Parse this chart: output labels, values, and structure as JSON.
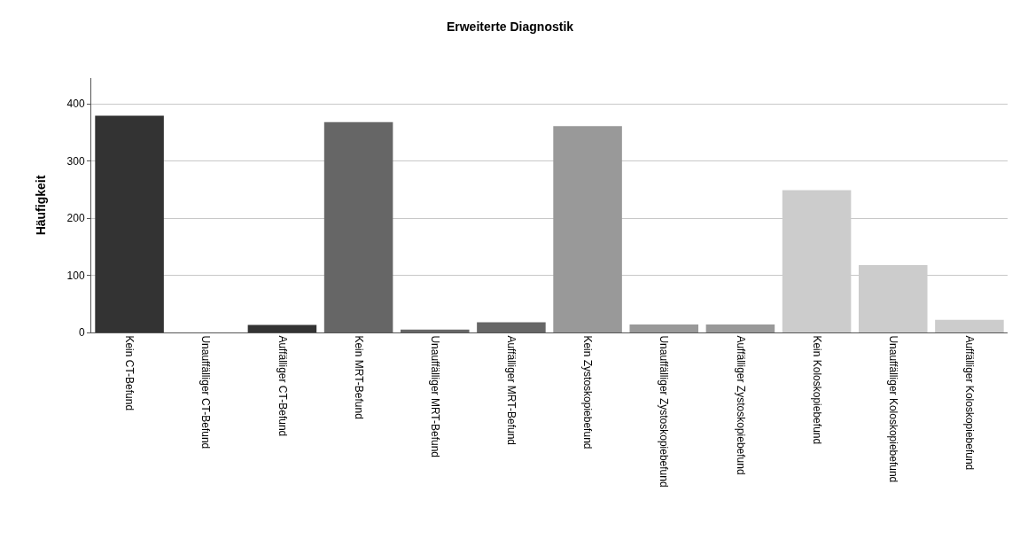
{
  "chart_data": {
    "type": "bar",
    "title": "Erweiterte Diagnostik",
    "ylabel": "Häufigkeit",
    "categories": [
      "Kein CT-Befund",
      "Unauffälliger CT-Befund",
      "Auffälliger CT-Befund",
      "Kein MRT-Befund",
      "Unauffälliger MRT-Befund",
      "Auffälliger MRT-Befund",
      "Kein Zystoskopiebefund",
      "Unauffälliger Zystoskopiebefund",
      "Auffälliger Zystoskopiebefund",
      "Kein Koloskopiebefund",
      "Unauffälliger Koloskopiebefund",
      "Auffälliger Koloskopiebefund"
    ],
    "values": [
      379,
      0,
      13,
      368,
      5,
      18,
      361,
      14,
      14,
      249,
      118,
      22
    ],
    "colors": [
      "#333333",
      "#333333",
      "#333333",
      "#666666",
      "#666666",
      "#666666",
      "#999999",
      "#999999",
      "#999999",
      "#cccccc",
      "#cccccc",
      "#cccccc"
    ],
    "ylim": [
      0,
      445
    ],
    "yticks": [
      0,
      100,
      200,
      300,
      400
    ],
    "grid": "y"
  }
}
